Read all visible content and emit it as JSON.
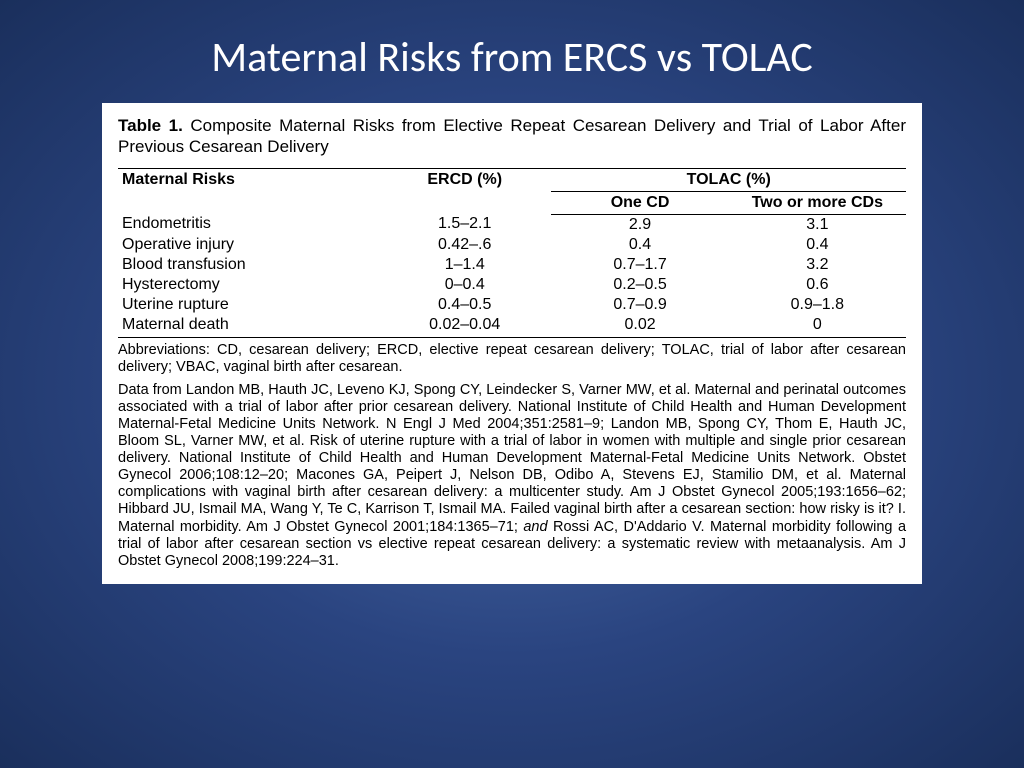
{
  "slide": {
    "title": "Maternal Risks from ERCS vs TOLAC",
    "background_gradient_center": "#4a6ba8",
    "background_gradient_mid": "#2a4480",
    "background_gradient_edge": "#1a2f5c",
    "title_color": "#ffffff",
    "title_fontsize": 42
  },
  "table": {
    "caption_label": "Table 1.",
    "caption_text": "Composite Maternal Risks from Elective Repeat Cesarean Delivery and Trial of Labor After Previous Cesarean Delivery",
    "header": {
      "col1": "Maternal Risks",
      "col2": "ERCD (%)",
      "col3_span": "TOLAC (%)",
      "sub1": "One CD",
      "sub2": "Two or more CDs"
    },
    "rows": [
      {
        "risk": "Endometritis",
        "ercd": "1.5–2.1",
        "one": "2.9",
        "two": "3.1"
      },
      {
        "risk": "Operative injury",
        "ercd": "0.42–.6",
        "one": "0.4",
        "two": "0.4"
      },
      {
        "risk": "Blood transfusion",
        "ercd": "1–1.4",
        "one": "0.7–1.7",
        "two": "3.2"
      },
      {
        "risk": "Hysterectomy",
        "ercd": "0–0.4",
        "one": "0.2–0.5",
        "two": "0.6"
      },
      {
        "risk": "Uterine rupture",
        "ercd": "0.4–0.5",
        "one": "0.7–0.9",
        "two": "0.9–1.8"
      },
      {
        "risk": "Maternal death",
        "ercd": "0.02–0.04",
        "one": "0.02",
        "two": "0"
      }
    ],
    "abbreviations": "Abbreviations: CD, cesarean delivery; ERCD, elective repeat cesarean delivery; TOLAC, trial of labor after cesarean delivery; VBAC, vaginal birth after cesarean.",
    "citation_prefix": "Data from Landon MB, Hauth JC, Leveno KJ, Spong CY, Leindecker S, Varner MW, et al. Maternal and perinatal outcomes associated with a trial of labor after prior cesarean delivery. National Institute of Child Health and Human Development Maternal-Fetal Medicine Units Network. N Engl J Med 2004;351:2581–9; Landon MB, Spong CY, Thom E, Hauth JC, Bloom SL, Varner MW, et al. Risk of uterine rupture with a trial of labor in women with multiple and single prior cesarean delivery. National Institute of Child Health and Human Development Maternal-Fetal Medicine Units Network. Obstet Gynecol 2006;108:12–20; Macones GA, Peipert J, Nelson DB, Odibo A, Stevens EJ, Stamilio DM, et al. Maternal complications with vaginal birth after cesarean delivery: a multicenter study. Am J Obstet Gynecol 2005;193:1656–62; Hibbard JU, Ismail MA, Wang Y, Te C, Karrison T, Ismail MA. Failed vaginal birth after a cesarean section: how risky is it? I. Maternal morbidity. Am J Obstet Gynecol 2001;184:1365–71; ",
    "citation_italic": "and",
    "citation_suffix": " Rossi AC, D'Addario V. Maternal morbidity following a trial of labor after cesarean section vs elective repeat cesarean delivery: a systematic review with metaanalysis. Am J Obstet Gynecol 2008;199:224–31.",
    "text_color": "#000000",
    "background_color": "#ffffff",
    "body_fontsize": 16,
    "footnote_fontsize": 14.5,
    "border_color": "#000000"
  }
}
